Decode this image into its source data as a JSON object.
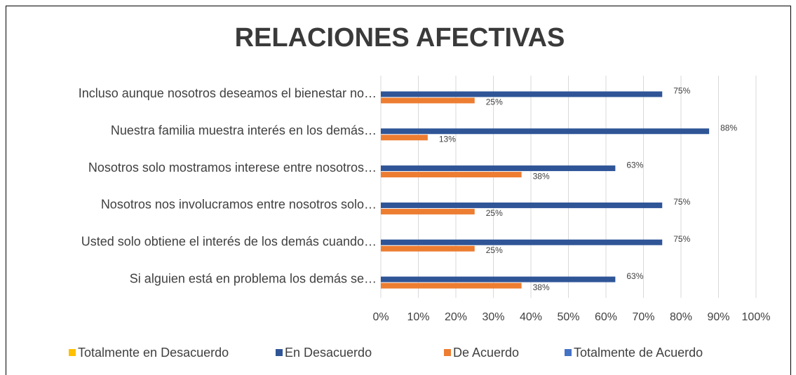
{
  "chart_data": {
    "type": "hbar",
    "title": "RELACIONES AFECTIVAS",
    "categories": [
      "Incluso aunque nosotros deseamos el bienestar no…",
      "Nuestra familia muestra interés en los demás…",
      "Nosotros solo mostramos interese entre nosotros…",
      "Nosotros nos involucramos entre nosotros solo…",
      "Usted solo obtiene el interés de los demás cuando…",
      "Si alguien está en problema los demás se…"
    ],
    "series": [
      {
        "name": "Totalmente en Desacuerdo",
        "color": "#ffc000",
        "values": [
          null,
          null,
          null,
          null,
          null,
          null
        ]
      },
      {
        "name": "En Desacuerdo",
        "color": "#2f5597",
        "values": [
          75,
          87.5,
          62.5,
          75,
          75,
          62.5
        ],
        "value_labels": [
          "75%",
          "88%",
          "63%",
          "75%",
          "75%",
          "63%"
        ]
      },
      {
        "name": "De Acuerdo",
        "color": "#ed7d31",
        "values": [
          25,
          12.5,
          37.5,
          25,
          25,
          37.5
        ],
        "value_labels": [
          "25%",
          "13%",
          "38%",
          "25%",
          "25%",
          "38%"
        ]
      },
      {
        "name": "Totalmente de Acuerdo",
        "color": "#4472c4",
        "values": [
          null,
          null,
          null,
          null,
          null,
          null
        ]
      }
    ],
    "xlim": [
      0,
      100
    ],
    "xticks": [
      {
        "value": 0,
        "label": "0%"
      },
      {
        "value": 10,
        "label": "10%"
      },
      {
        "value": 20,
        "label": "20%"
      },
      {
        "value": 30,
        "label": "30%"
      },
      {
        "value": 40,
        "label": "40%"
      },
      {
        "value": 50,
        "label": "50%"
      },
      {
        "value": 60,
        "label": "60%"
      },
      {
        "value": 70,
        "label": "70%"
      },
      {
        "value": 80,
        "label": "80%"
      },
      {
        "value": 90,
        "label": "90%"
      },
      {
        "value": 100,
        "label": "100%"
      }
    ],
    "grid": true,
    "legend": "bottom"
  }
}
